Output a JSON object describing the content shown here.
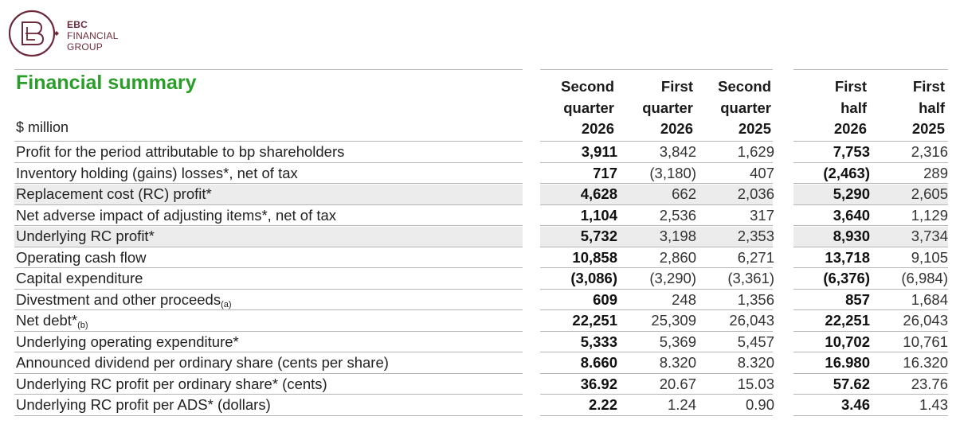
{
  "logo": {
    "line1": "EBC",
    "line2": "FINANCIAL",
    "line3": "GROUP",
    "color": "#6b2b3c"
  },
  "title": "Financial summary",
  "unit": "$ million",
  "columns": [
    [
      "Second",
      "quarter",
      "2026"
    ],
    [
      "First",
      "quarter",
      "2026"
    ],
    [
      "Second",
      "quarter",
      "2025"
    ],
    [
      "First",
      "half",
      "2026"
    ],
    [
      "First",
      "half",
      "2025"
    ]
  ],
  "rows": [
    {
      "label": "Profit for the period attributable to bp shareholders",
      "sub": "",
      "values": [
        "3,911",
        "3,842",
        "1,629",
        "7,753",
        "2,316"
      ],
      "shaded": false
    },
    {
      "label": "Inventory holding (gains) losses*, net of tax",
      "sub": "",
      "values": [
        "717",
        "(3,180)",
        "407",
        "(2,463)",
        "289"
      ],
      "shaded": false
    },
    {
      "label": "Replacement cost (RC) profit*",
      "sub": "",
      "values": [
        "4,628",
        "662",
        "2,036",
        "5,290",
        "2,605"
      ],
      "shaded": true
    },
    {
      "label": "Net adverse impact of adjusting items*, net of tax",
      "sub": "",
      "values": [
        "1,104",
        "2,536",
        "317",
        "3,640",
        "1,129"
      ],
      "shaded": false
    },
    {
      "label": "Underlying RC profit*",
      "sub": "",
      "values": [
        "5,732",
        "3,198",
        "2,353",
        "8,930",
        "3,734"
      ],
      "shaded": true
    },
    {
      "label": "Operating cash flow",
      "sub": "",
      "values": [
        "10,858",
        "2,860",
        "6,271",
        "13,718",
        "9,105"
      ],
      "shaded": false
    },
    {
      "label": "Capital expenditure",
      "sub": "",
      "values": [
        "(3,086)",
        "(3,290)",
        "(3,361)",
        "(6,376)",
        "(6,984)"
      ],
      "shaded": false
    },
    {
      "label": "Divestment and other proceeds",
      "sub": "(a)",
      "values": [
        "609",
        "248",
        "1,356",
        "857",
        "1,684"
      ],
      "shaded": false
    },
    {
      "label": "Net debt*",
      "sub": "(b)",
      "values": [
        "22,251",
        "25,309",
        "26,043",
        "22,251",
        "26,043"
      ],
      "shaded": false
    },
    {
      "label": "Underlying operating expenditure*",
      "sub": "",
      "values": [
        "5,333",
        "5,369",
        "5,457",
        "10,702",
        "10,761"
      ],
      "shaded": false
    },
    {
      "label": "Announced dividend per ordinary share (cents per share)",
      "sub": "",
      "values": [
        "8.660",
        "8.320",
        "8.320",
        "16.980",
        "16.320"
      ],
      "shaded": false
    },
    {
      "label": "Underlying RC profit per ordinary share* (cents)",
      "sub": "",
      "values": [
        "36.92",
        "20.67",
        "15.03",
        "57.62",
        "23.76"
      ],
      "shaded": false
    },
    {
      "label": "Underlying RC profit per ADS* (dollars)",
      "sub": "",
      "values": [
        "2.22",
        "1.24",
        "0.90",
        "3.46",
        "1.43"
      ],
      "shaded": false
    }
  ]
}
